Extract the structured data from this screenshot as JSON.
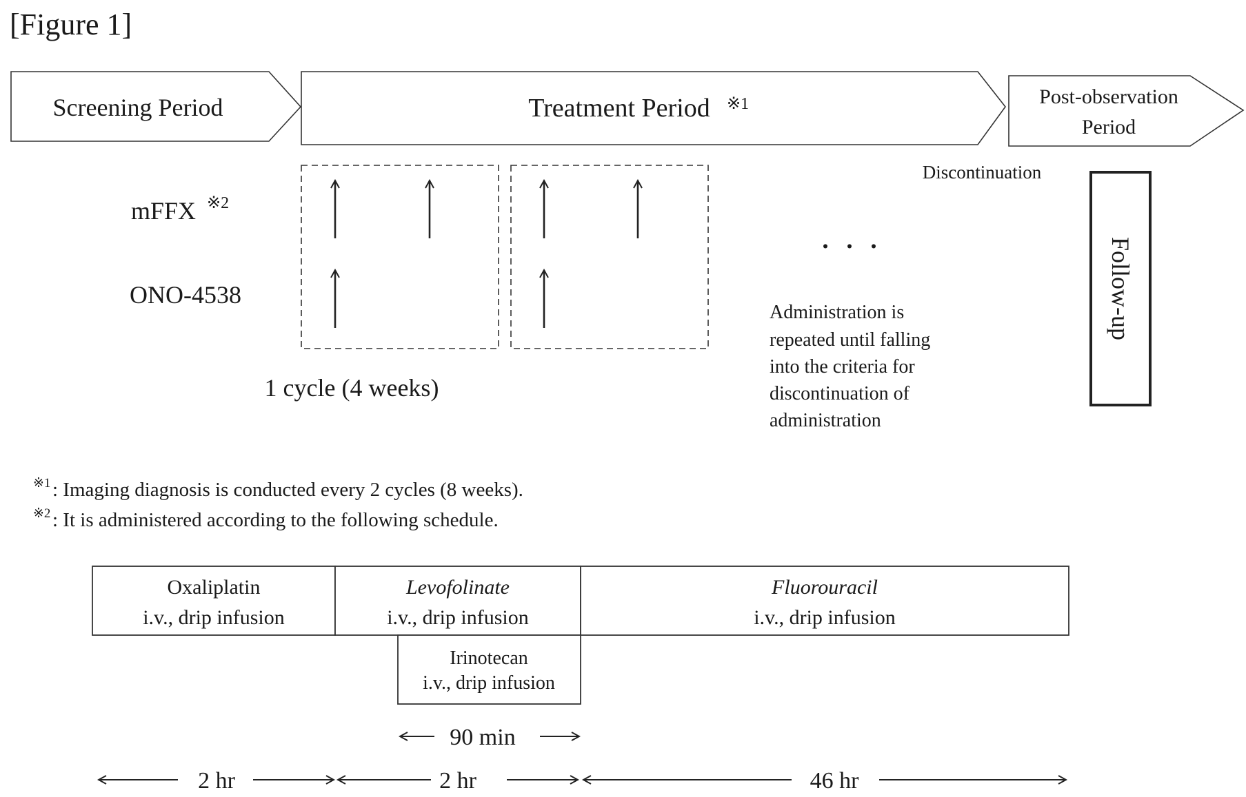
{
  "figure_label": "[Figure 1]",
  "phases": {
    "screening": "Screening Period",
    "treatment": "Treatment Period",
    "treatment_note_mark": "※1",
    "post_line1": "Post-observation",
    "post_line2": "Period"
  },
  "discontinuation": "Discontinuation",
  "follow_up": "Follow-up",
  "drugs": {
    "mffx": "mFFX",
    "mffx_note_mark": "※2",
    "ono": "ONO-4538"
  },
  "cycle_label": "1 cycle (4 weeks)",
  "ellipsis": "・ ・ ・",
  "administration_note": [
    "Administration is",
    "repeated until falling",
    "into the criteria for",
    "discontinuation of",
    "administration"
  ],
  "footnotes": [
    {
      "mark": "※1",
      "text": ": Imaging diagnosis is conducted every 2 cycles (8 weeks)."
    },
    {
      "mark": "※2",
      "text": ": It is administered according to the following schedule."
    }
  ],
  "schedule": {
    "oxaliplatin": {
      "name": "Oxaliplatin",
      "route": "i.v., drip infusion"
    },
    "levofolinate": {
      "name": "Levofolinate",
      "route": "i.v., drip infusion"
    },
    "fluorouracil": {
      "name": "Fluorouracil",
      "route": "i.v., drip infusion"
    },
    "irinotecan": {
      "name": "Irinotecan",
      "route": "i.v., drip infusion"
    }
  },
  "durations": {
    "irinotecan": "90 min",
    "oxaliplatin": "2 hr",
    "levofolinate": "2 hr",
    "fluorouracil": "46 hr"
  }
}
